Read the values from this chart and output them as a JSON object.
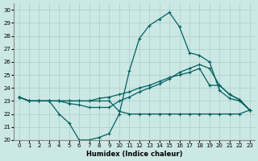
{
  "xlabel": "Humidex (Indice chaleur)",
  "xlim": [
    -0.5,
    23.5
  ],
  "ylim": [
    20,
    30.5
  ],
  "yticks": [
    20,
    21,
    22,
    23,
    24,
    25,
    26,
    27,
    28,
    29,
    30
  ],
  "xticks": [
    0,
    1,
    2,
    3,
    4,
    5,
    6,
    7,
    8,
    9,
    10,
    11,
    12,
    13,
    14,
    15,
    16,
    17,
    18,
    19,
    20,
    21,
    22,
    23
  ],
  "bg_color": "#cce8e4",
  "grid_color": "#aaccc8",
  "line_color": "#006060",
  "line1_x": [
    0,
    1,
    2,
    3,
    4,
    5,
    6,
    7,
    8,
    9,
    10,
    11,
    12,
    13,
    14,
    15,
    16,
    17,
    18,
    19,
    20,
    21,
    22,
    23
  ],
  "line1_y": [
    23.3,
    23.0,
    23.0,
    23.0,
    22.0,
    21.3,
    20.0,
    20.0,
    20.2,
    20.5,
    22.0,
    25.3,
    27.8,
    28.8,
    29.3,
    29.8,
    28.7,
    26.7,
    26.5,
    26.0,
    23.8,
    23.2,
    23.0,
    22.3
  ],
  "line2_x": [
    0,
    1,
    2,
    3,
    4,
    5,
    6,
    7,
    8,
    9,
    10,
    11,
    12,
    13,
    14,
    15,
    16,
    17,
    18,
    19,
    20,
    21,
    22,
    23
  ],
  "line2_y": [
    23.3,
    23.0,
    23.0,
    23.0,
    23.0,
    22.8,
    22.7,
    22.5,
    22.5,
    22.5,
    23.0,
    23.3,
    23.7,
    24.0,
    24.3,
    24.7,
    25.2,
    25.5,
    25.8,
    25.5,
    24.2,
    23.5,
    23.1,
    22.3
  ],
  "line3_x": [
    0,
    1,
    2,
    3,
    4,
    5,
    6,
    7,
    8,
    9,
    10,
    11,
    12,
    13,
    14,
    15,
    16,
    17,
    18,
    19,
    20,
    21,
    22,
    23
  ],
  "line3_y": [
    23.3,
    23.0,
    23.0,
    23.0,
    23.0,
    23.0,
    23.0,
    23.0,
    23.2,
    23.3,
    23.5,
    23.7,
    24.0,
    24.2,
    24.5,
    24.8,
    25.0,
    25.2,
    25.5,
    24.2,
    24.2,
    23.5,
    23.1,
    22.3
  ],
  "line4_x": [
    0,
    1,
    2,
    3,
    4,
    5,
    6,
    7,
    8,
    9,
    10,
    11,
    12,
    13,
    14,
    15,
    16,
    17,
    18,
    19,
    20,
    21,
    22,
    23
  ],
  "line4_y": [
    23.3,
    23.0,
    23.0,
    23.0,
    23.0,
    23.0,
    23.0,
    23.0,
    23.0,
    23.0,
    22.2,
    22.0,
    22.0,
    22.0,
    22.0,
    22.0,
    22.0,
    22.0,
    22.0,
    22.0,
    22.0,
    22.0,
    22.0,
    22.3
  ]
}
